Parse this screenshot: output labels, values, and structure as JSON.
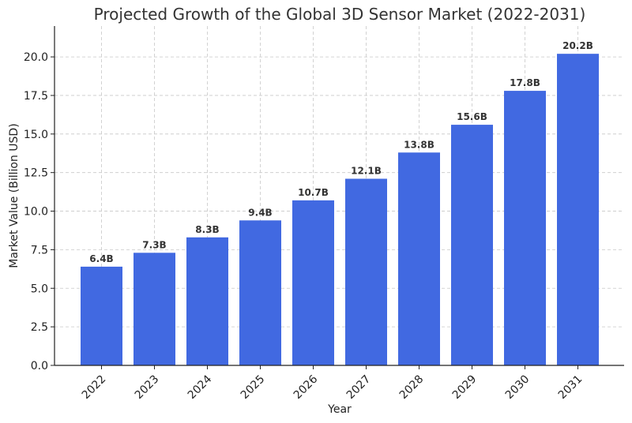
{
  "chart_data": {
    "type": "bar",
    "title": "Projected Growth of the Global 3D Sensor Market (2022-2031)",
    "xlabel": "Year",
    "ylabel": "Market Value (Billion USD)",
    "categories": [
      "2022",
      "2023",
      "2024",
      "2025",
      "2026",
      "2027",
      "2028",
      "2029",
      "2030",
      "2031"
    ],
    "values": [
      6.4,
      7.3,
      8.3,
      9.4,
      10.7,
      12.1,
      13.8,
      15.6,
      17.8,
      20.2
    ],
    "data_labels": [
      "6.4B",
      "7.3B",
      "8.3B",
      "9.4B",
      "10.7B",
      "12.1B",
      "13.8B",
      "15.6B",
      "17.8B",
      "20.2B"
    ],
    "yticks": [
      "0.0",
      "2.5",
      "5.0",
      "7.5",
      "10.0",
      "12.5",
      "15.0",
      "17.5",
      "20.0"
    ],
    "ylim": [
      0,
      22
    ],
    "grid": true,
    "bar_color": "#4169e1"
  }
}
